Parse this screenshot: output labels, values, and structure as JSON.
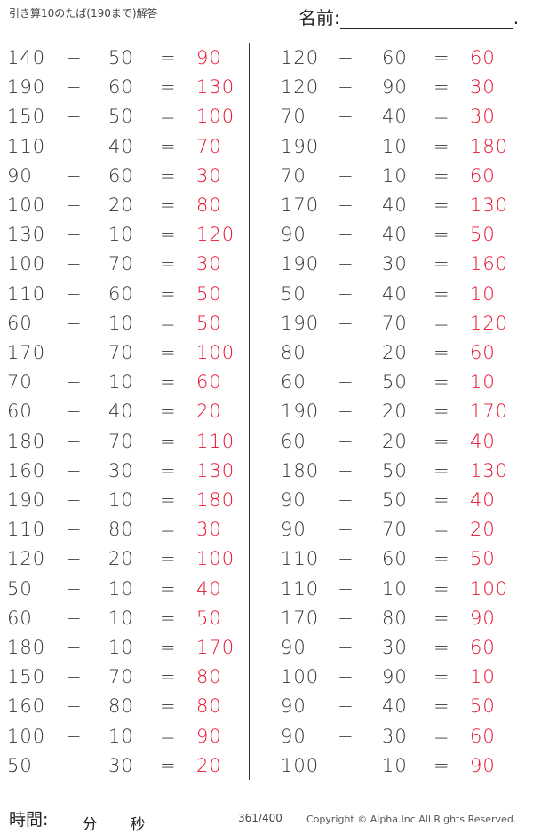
{
  "header": {
    "title": "引き算10のたば(190まで)解答",
    "name_label": "名前:",
    "name_end": "."
  },
  "footer": {
    "time_label": "時間:",
    "minutes_label": "分",
    "seconds_label": "秒",
    "page": "361/400",
    "copyright": "Copyright ©  Alpha.Inc All Rights Reserved."
  },
  "symbols": {
    "minus": "−",
    "equals": "="
  },
  "colors": {
    "answer": "#e8102e"
  },
  "left": [
    [
      140,
      50,
      90
    ],
    [
      190,
      60,
      130
    ],
    [
      150,
      50,
      100
    ],
    [
      110,
      40,
      70
    ],
    [
      90,
      60,
      30
    ],
    [
      100,
      20,
      80
    ],
    [
      130,
      10,
      120
    ],
    [
      100,
      70,
      30
    ],
    [
      110,
      60,
      50
    ],
    [
      60,
      10,
      50
    ],
    [
      170,
      70,
      100
    ],
    [
      70,
      10,
      60
    ],
    [
      60,
      40,
      20
    ],
    [
      180,
      70,
      110
    ],
    [
      160,
      30,
      130
    ],
    [
      190,
      10,
      180
    ],
    [
      110,
      80,
      30
    ],
    [
      120,
      20,
      100
    ],
    [
      50,
      10,
      40
    ],
    [
      60,
      10,
      50
    ],
    [
      180,
      10,
      170
    ],
    [
      150,
      70,
      80
    ],
    [
      160,
      80,
      80
    ],
    [
      100,
      10,
      90
    ],
    [
      50,
      30,
      20
    ]
  ],
  "right": [
    [
      120,
      60,
      60
    ],
    [
      120,
      90,
      30
    ],
    [
      70,
      40,
      30
    ],
    [
      190,
      10,
      180
    ],
    [
      70,
      10,
      60
    ],
    [
      170,
      40,
      130
    ],
    [
      90,
      40,
      50
    ],
    [
      190,
      30,
      160
    ],
    [
      50,
      40,
      10
    ],
    [
      190,
      70,
      120
    ],
    [
      80,
      20,
      60
    ],
    [
      60,
      50,
      10
    ],
    [
      190,
      20,
      170
    ],
    [
      60,
      20,
      40
    ],
    [
      180,
      50,
      130
    ],
    [
      90,
      50,
      40
    ],
    [
      90,
      70,
      20
    ],
    [
      110,
      60,
      50
    ],
    [
      110,
      10,
      100
    ],
    [
      170,
      80,
      90
    ],
    [
      90,
      30,
      60
    ],
    [
      100,
      90,
      10
    ],
    [
      90,
      40,
      50
    ],
    [
      90,
      30,
      60
    ],
    [
      100,
      10,
      90
    ]
  ]
}
